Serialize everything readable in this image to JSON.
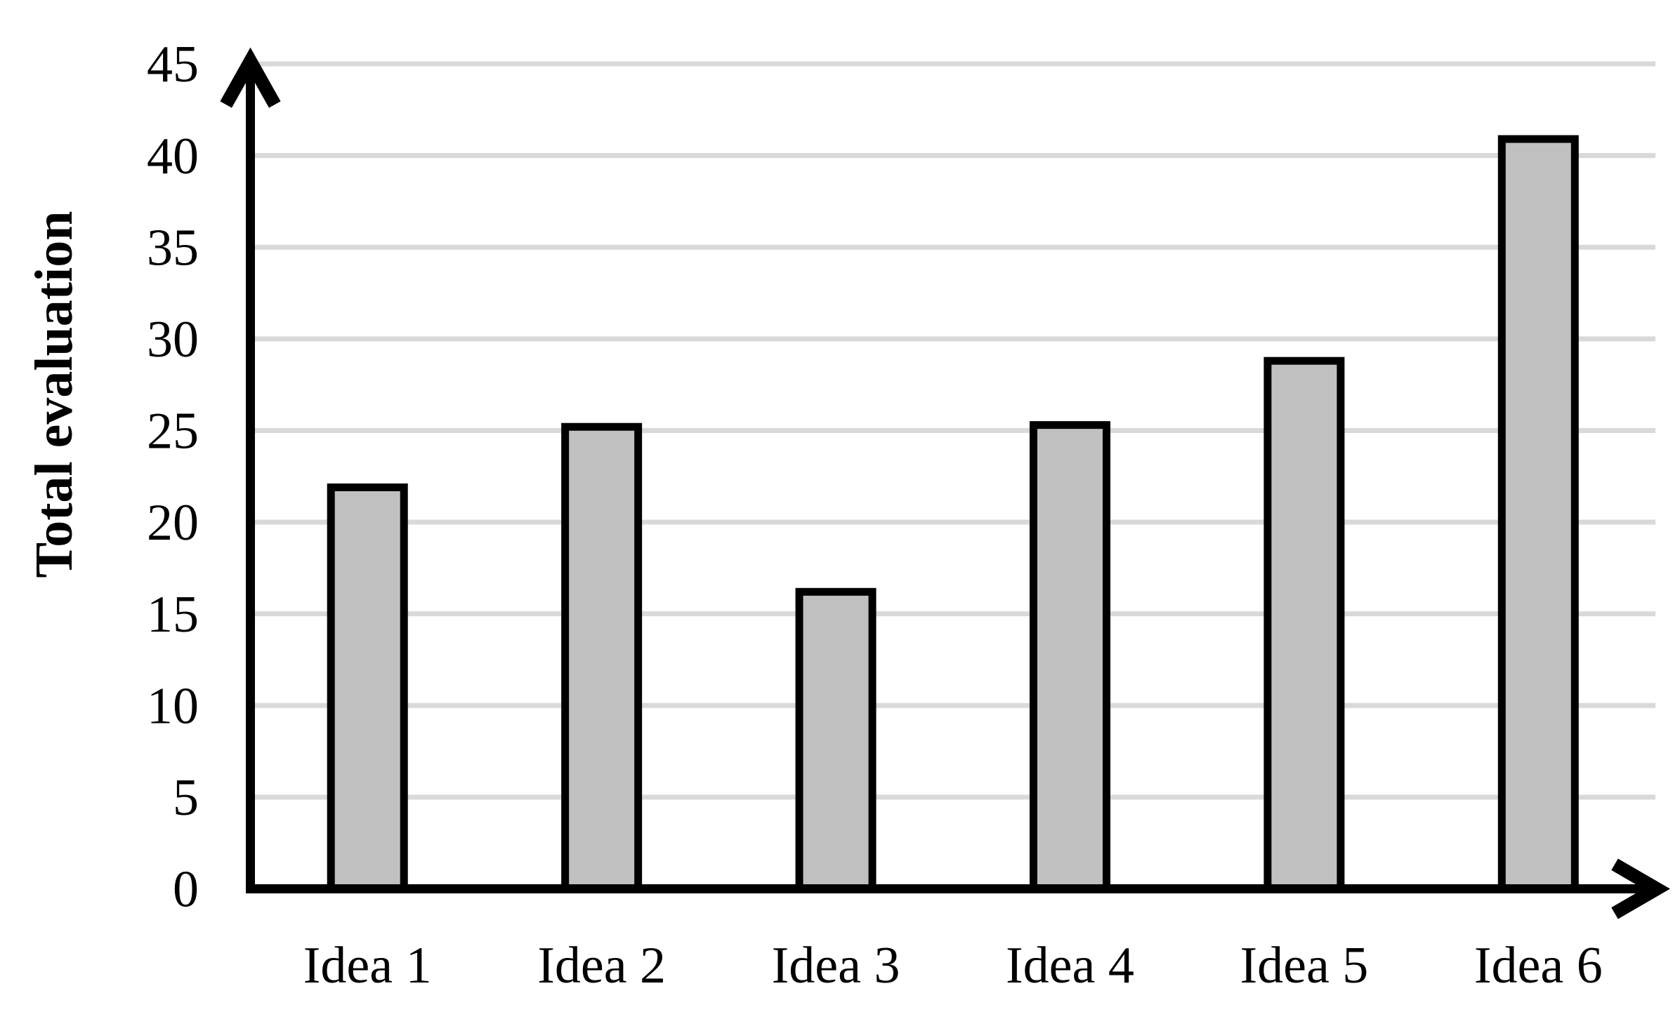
{
  "chart_data": {
    "type": "bar",
    "title": "",
    "categories": [
      "Idea 1",
      "Idea 2",
      "Idea 3",
      "Idea 4",
      "Idea 5",
      "Idea 6"
    ],
    "values": [
      21.9,
      25.2,
      16.2,
      25.3,
      28.8,
      40.9
    ],
    "series_name": "Total evaluation",
    "xlabel": "",
    "ylabel": "Total evaluation",
    "ylim": [
      0,
      45
    ],
    "ytick_step": 5,
    "ytick_labels": [
      "0",
      "5",
      "10",
      "15",
      "20",
      "25",
      "30",
      "35",
      "40",
      "45"
    ],
    "grid": true,
    "legend": false,
    "axis_arrows": true,
    "colors": {
      "background": "#ffffff",
      "bar_fill": "#c0c0c0",
      "bar_border": "#000000",
      "gridline": "#d9d9d9",
      "axis": "#000000",
      "text": "#000000"
    }
  }
}
